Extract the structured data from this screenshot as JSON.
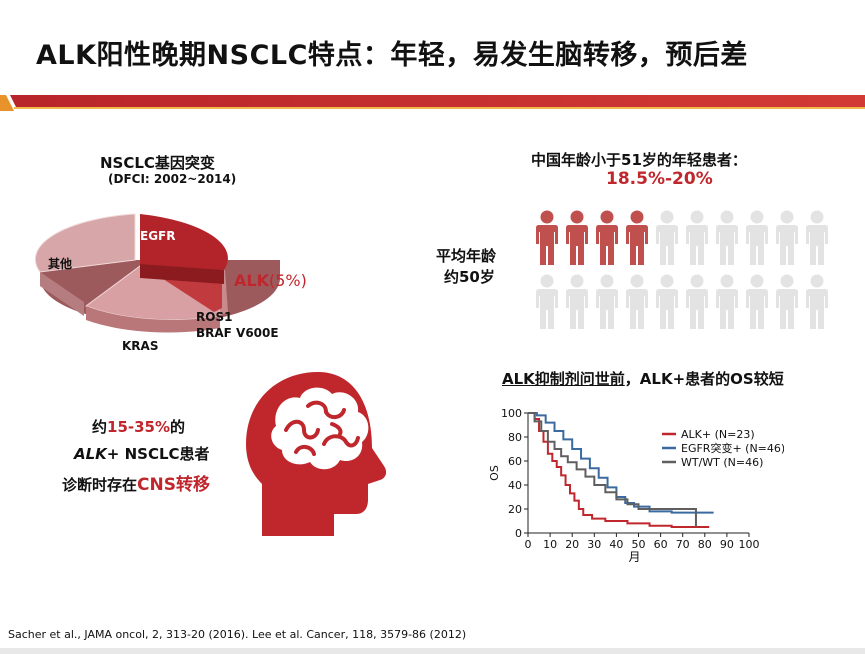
{
  "title": "ALK阳性晚期NSCLC特点：年轻，易发生脑转移，预后差",
  "pie_section": {
    "title": "NSCLC基因突变",
    "subtitle": "(DFCI: 2002~2014)",
    "labels": {
      "egfr": "EGFR",
      "alk": "ALK",
      "alk_pct": "(5%)",
      "other": "其他",
      "ros1": "ROS1",
      "braf": "BRAF V600E",
      "kras": "KRAS"
    }
  },
  "young_section": {
    "title": "中国年龄小于51岁的年轻患者：",
    "value": "18.5%-20%",
    "avg_line1": "平均年龄",
    "avg_line2": "约50岁"
  },
  "people_icons": {
    "total": 20,
    "highlighted": 4,
    "highlight_color": "#c0504d",
    "base_color": "#e3e3e3"
  },
  "brain_section": {
    "prefix": "约",
    "pct": "15-35%",
    "suffix": "的",
    "line2_italic": "ALK",
    "line2_rest": "+ NSCLC患者",
    "line3_prefix": "诊断时存在",
    "line3_red": "CNS转移"
  },
  "os_section": {
    "title_underlined": "ALK抑制剂问世前",
    "title_rest": "，ALK+患者的OS较短"
  },
  "chart_data": [
    {
      "type": "pie",
      "labels": [
        "EGFR",
        "ALK",
        "ROS1",
        "BRAF V600E",
        "KRAS",
        "其他"
      ],
      "highlight": "ALK (5%)"
    },
    {
      "type": "line",
      "xlabel": "月",
      "ylabel": "OS",
      "xlim": [
        0,
        100
      ],
      "ylim": [
        0,
        100
      ],
      "xticks": [
        0,
        10,
        20,
        30,
        40,
        50,
        60,
        70,
        80,
        90,
        100
      ],
      "yticks": [
        0,
        20,
        40,
        60,
        80,
        100
      ],
      "legend_position": "top-right",
      "series": [
        {
          "name": "ALK+ (N=23)",
          "color": "#c0272d",
          "x": [
            0,
            3,
            5,
            7,
            9,
            11,
            13,
            15,
            17,
            19,
            21,
            23,
            25,
            29,
            35,
            45,
            55,
            65,
            75,
            82
          ],
          "y": [
            100,
            95,
            85,
            76,
            66,
            60,
            55,
            48,
            40,
            33,
            27,
            20,
            15,
            12,
            10,
            8,
            6,
            5,
            5,
            5
          ]
        },
        {
          "name": "EGFR突变+ (N=46)",
          "color": "#3b6aa0",
          "x": [
            0,
            4,
            8,
            12,
            16,
            20,
            24,
            28,
            32,
            36,
            40,
            44,
            48,
            55,
            65,
            75,
            84
          ],
          "y": [
            100,
            98,
            92,
            85,
            78,
            70,
            62,
            54,
            46,
            38,
            30,
            25,
            22,
            18,
            17,
            17,
            17
          ]
        },
        {
          "name": "WT/WT (N=46)",
          "color": "#5f5f5f",
          "x": [
            0,
            3,
            6,
            9,
            12,
            15,
            18,
            22,
            26,
            30,
            35,
            40,
            45,
            50,
            60,
            70,
            75,
            76
          ],
          "y": [
            100,
            93,
            85,
            76,
            70,
            64,
            59,
            53,
            47,
            40,
            34,
            28,
            24,
            20,
            20,
            20,
            20,
            5
          ]
        }
      ]
    }
  ]
}
